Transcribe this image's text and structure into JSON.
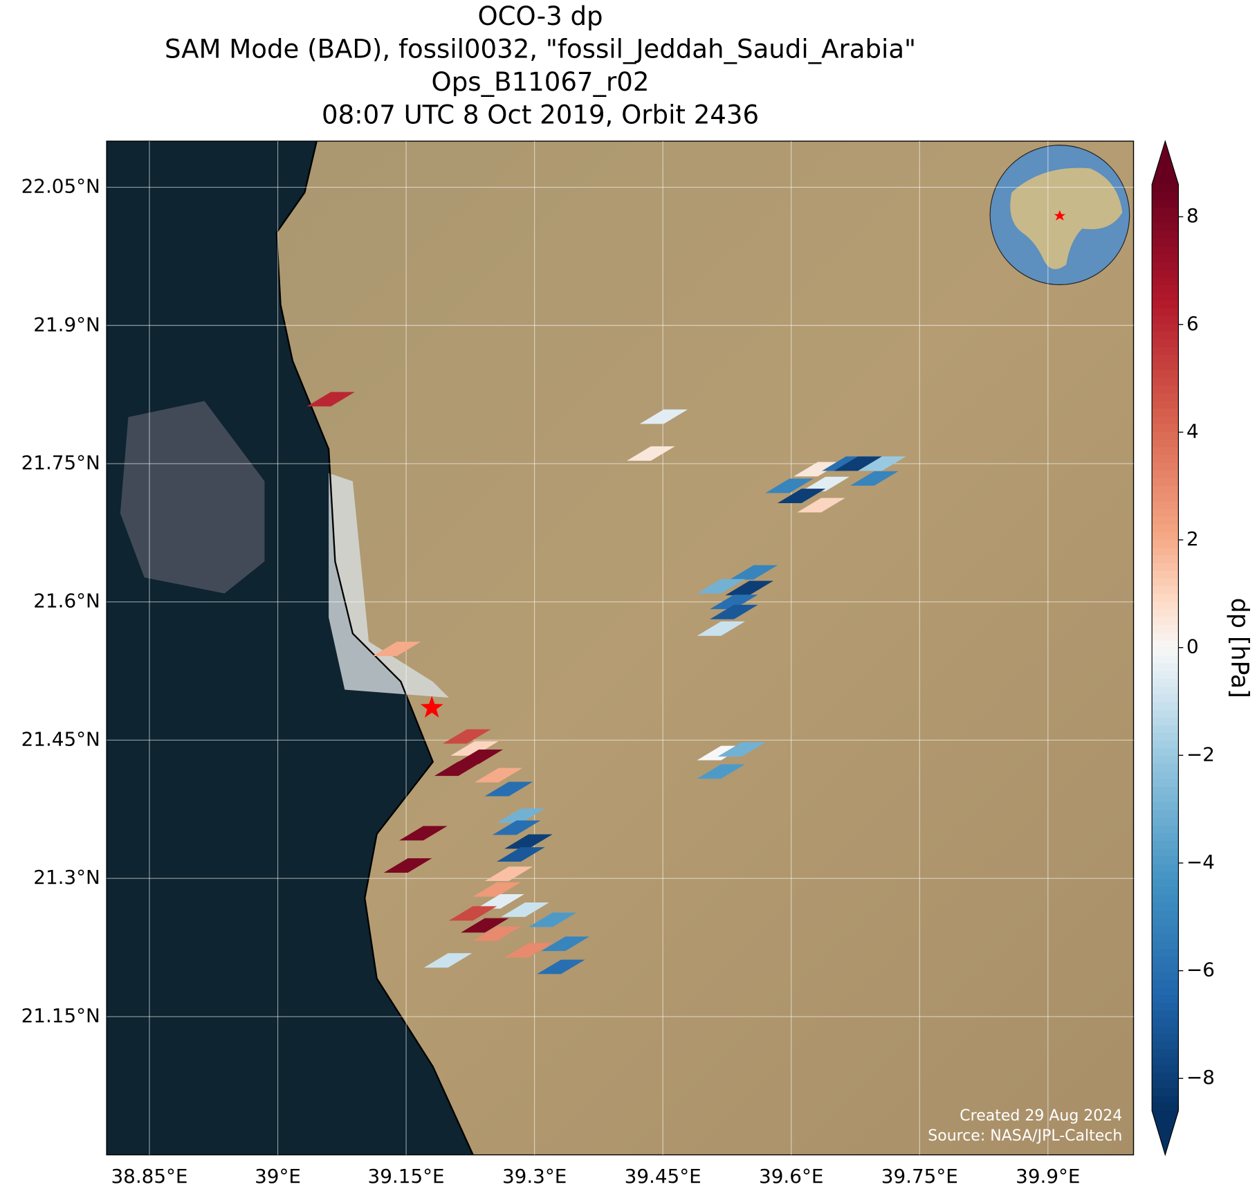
{
  "chart_data": {
    "type": "map",
    "title": [
      "OCO-3 dp",
      "SAM Mode (BAD), fossil0032, \"fossil_Jeddah_Saudi_Arabia\"",
      "Ops_B11067_r02",
      "08:07 UTC 8 Oct 2019, Orbit 2436"
    ],
    "xlim": [
      38.8,
      40.0
    ],
    "ylim": [
      21.0,
      22.1
    ],
    "xticks": [
      {
        "value": 38.85,
        "label": "38.85°E"
      },
      {
        "value": 39.0,
        "label": "39°E"
      },
      {
        "value": 39.15,
        "label": "39.15°E"
      },
      {
        "value": 39.3,
        "label": "39.3°E"
      },
      {
        "value": 39.45,
        "label": "39.45°E"
      },
      {
        "value": 39.6,
        "label": "39.6°E"
      },
      {
        "value": 39.75,
        "label": "39.75°E"
      },
      {
        "value": 39.9,
        "label": "39.9°E"
      }
    ],
    "yticks": [
      {
        "value": 21.15,
        "label": "21.15°N"
      },
      {
        "value": 21.3,
        "label": "21.3°N"
      },
      {
        "value": 21.45,
        "label": "21.45°N"
      },
      {
        "value": 21.6,
        "label": "21.6°N"
      },
      {
        "value": 21.75,
        "label": "21.75°N"
      },
      {
        "value": 21.9,
        "label": "21.9°N"
      },
      {
        "value": 22.05,
        "label": "22.05°N"
      }
    ],
    "grid": true,
    "colormap": "RdBu_r",
    "clim": [
      -8.6,
      8.6
    ],
    "cticks": [
      {
        "value": -8,
        "label": "−8"
      },
      {
        "value": -6,
        "label": "−6"
      },
      {
        "value": -4,
        "label": "−4"
      },
      {
        "value": -2,
        "label": "−2"
      },
      0,
      2,
      4,
      6,
      8
    ],
    "colorbar_label": "dp [hPa]",
    "target": {
      "lon": 39.18,
      "lat": 21.485,
      "color": "#ff0000"
    },
    "lon": [
      39.062,
      39.451,
      39.436,
      39.598,
      39.631,
      39.664,
      39.678,
      39.706,
      39.64,
      39.697,
      39.612,
      39.635,
      39.556,
      39.518,
      39.551,
      39.533,
      39.533,
      39.518,
      39.139,
      39.221,
      39.23,
      39.235,
      39.211,
      39.258,
      39.27,
      39.284,
      39.279,
      39.293,
      39.284,
      39.17,
      39.152,
      39.27,
      39.256,
      39.26,
      39.289,
      39.228,
      39.242,
      39.256,
      39.321,
      39.336,
      39.293,
      39.331,
      39.199,
      39.518,
      39.542,
      39.518
    ],
    "lat": [
      21.82,
      21.801,
      21.761,
      21.726,
      21.744,
      21.75,
      21.75,
      21.75,
      21.728,
      21.734,
      21.715,
      21.705,
      21.632,
      21.617,
      21.615,
      21.6,
      21.589,
      21.571,
      21.549,
      21.454,
      21.441,
      21.432,
      21.419,
      21.412,
      21.397,
      21.368,
      21.355,
      21.34,
      21.326,
      21.349,
      21.314,
      21.305,
      21.288,
      21.275,
      21.266,
      21.262,
      21.249,
      21.24,
      21.255,
      21.229,
      21.222,
      21.204,
      21.211,
      21.436,
      21.44,
      21.416
    ],
    "values": [
      6,
      -0.5,
      0.5,
      -5,
      0.5,
      -6,
      -8,
      -2,
      -0.5,
      -5,
      -8,
      1,
      -5,
      -3,
      -8,
      -6,
      -7,
      -1,
      2,
      5,
      1,
      8,
      8,
      2,
      -6,
      -3,
      -6,
      -8,
      -7,
      8,
      8,
      1.5,
      2.5,
      -0.5,
      -1,
      5,
      8,
      3,
      -4,
      -5,
      3,
      -6,
      -1,
      0,
      -3,
      -4
    ],
    "credits": [
      "Created 29 Aug 2024",
      "Source: NASA/JPL-Caltech"
    ]
  }
}
